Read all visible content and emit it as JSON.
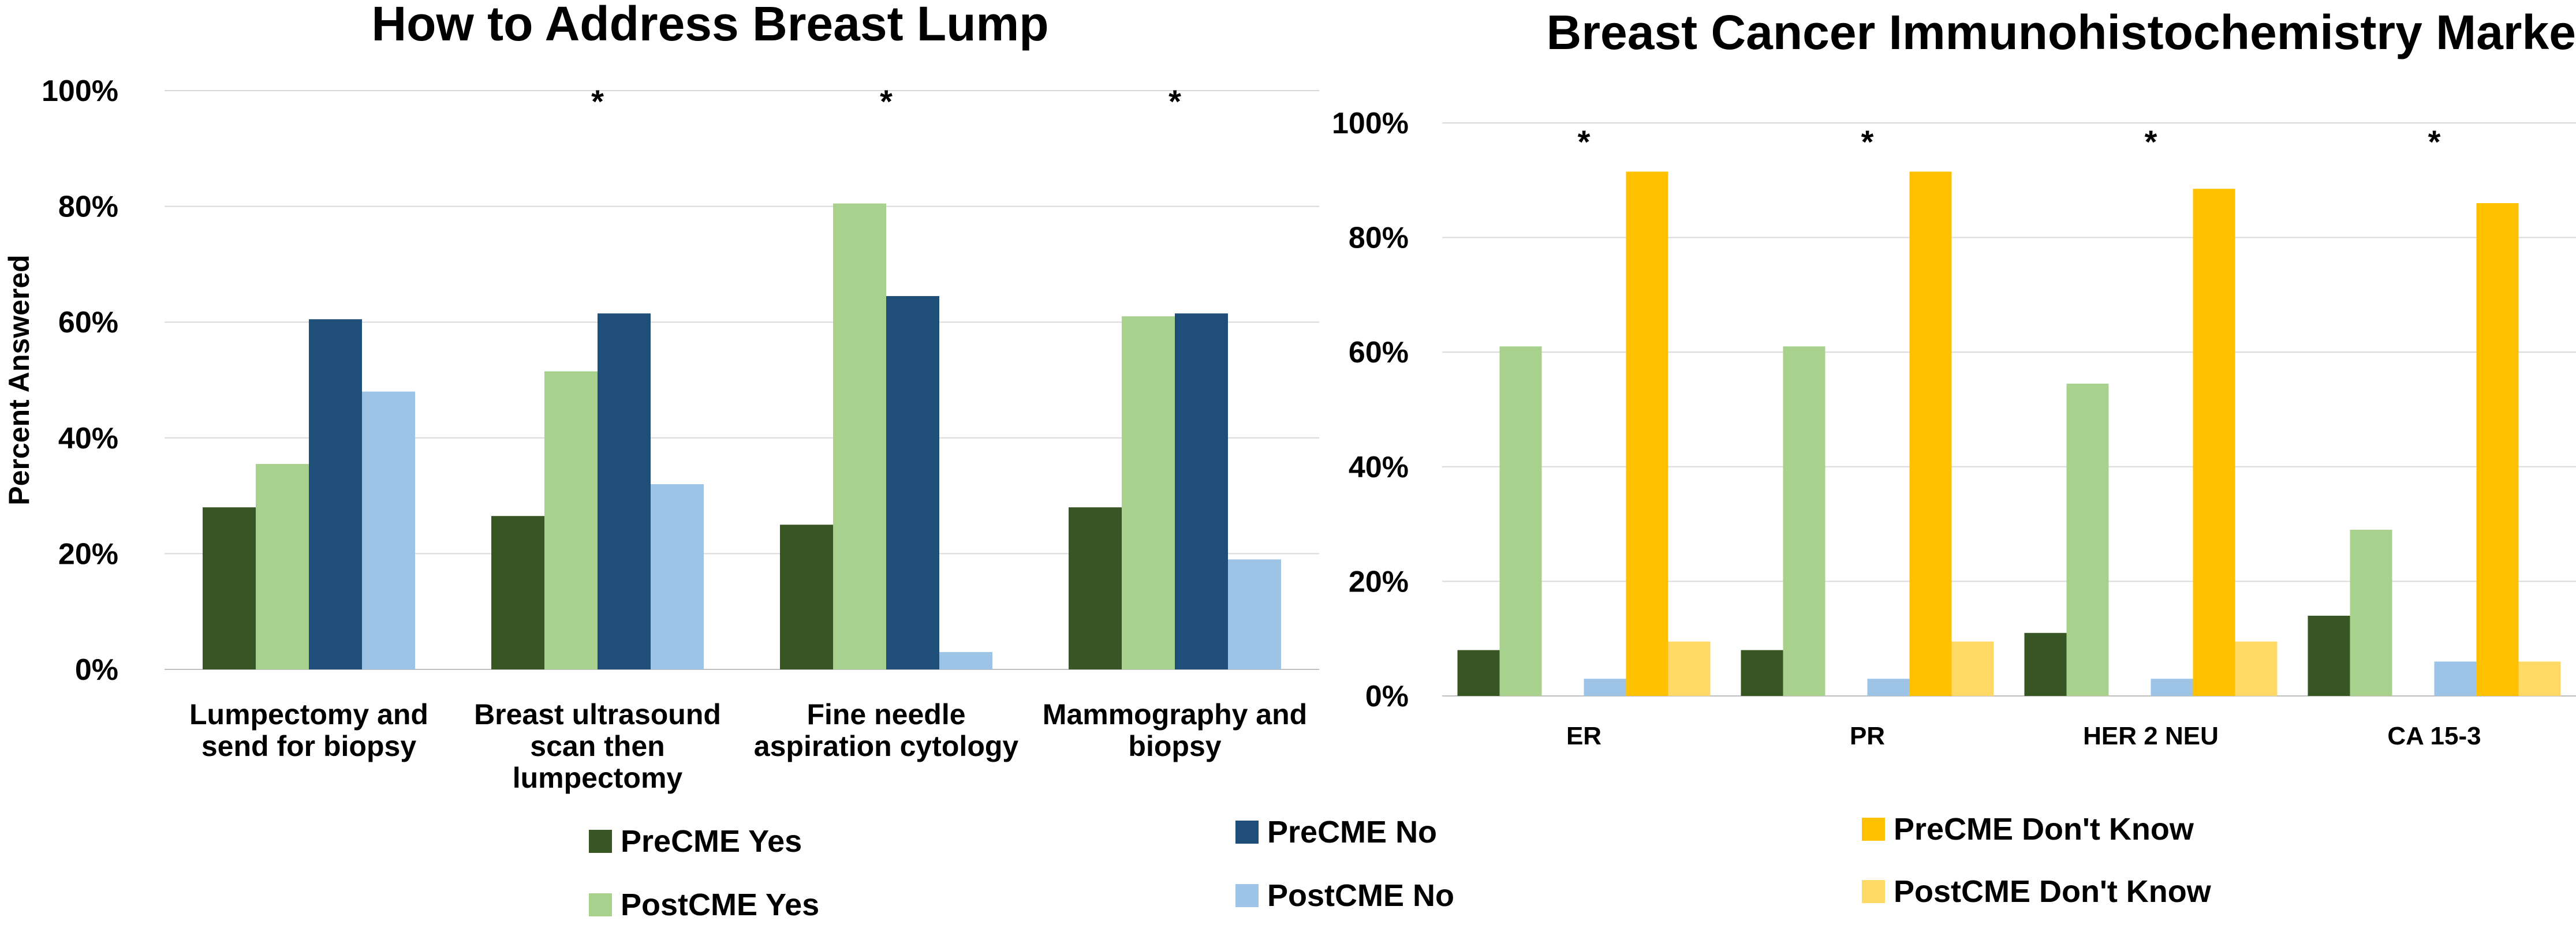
{
  "chart_data": [
    {
      "type": "bar",
      "title": "How to Address Breast Lump",
      "ylabel": "Percent Answered",
      "xlabel": "",
      "ylim": [
        0,
        100
      ],
      "yticks": [
        "0%",
        "20%",
        "40%",
        "60%",
        "80%",
        "100%"
      ],
      "categories": [
        [
          "Lumpectomy and",
          "send for biopsy"
        ],
        [
          "Breast ultrasound",
          "scan then",
          "lumpectomy"
        ],
        [
          "Fine needle",
          "aspiration cytology"
        ],
        [
          "Mammography and",
          "biopsy"
        ]
      ],
      "series": [
        {
          "name": "PreCME Yes",
          "color": "#375623",
          "values": [
            28,
            26.5,
            25,
            28
          ]
        },
        {
          "name": "PostCME Yes",
          "color": "#a9d18e",
          "values": [
            35.5,
            51.5,
            80.5,
            61
          ]
        },
        {
          "name": "PreCME No",
          "color": "#1f4e79",
          "values": [
            60.5,
            61.5,
            64.5,
            61.5
          ]
        },
        {
          "name": "PostCME No",
          "color": "#9dc3e6",
          "values": [
            48,
            32,
            3,
            19
          ]
        }
      ],
      "significance": [
        "",
        "*",
        "*",
        "*"
      ],
      "legend": "bottom"
    },
    {
      "type": "bar",
      "title": "Breast Cancer Immunohistochemistry Markers",
      "ylabel": "",
      "xlabel": "",
      "ylim": [
        0,
        100
      ],
      "yticks": [
        "0%",
        "20%",
        "40%",
        "60%",
        "80%",
        "100%"
      ],
      "categories": [
        [
          "ER"
        ],
        [
          "PR"
        ],
        [
          "HER 2 NEU"
        ],
        [
          "CA 15-3"
        ]
      ],
      "series": [
        {
          "name": "PreCME Yes",
          "color": "#375623",
          "values": [
            8,
            8,
            11,
            14
          ]
        },
        {
          "name": "PostCME Yes",
          "color": "#a9d18e",
          "values": [
            61,
            61,
            54.5,
            29
          ]
        },
        {
          "name": "PreCME No",
          "color": "#1f4e79",
          "values": [
            0,
            0,
            0,
            0
          ]
        },
        {
          "name": "PostCME No",
          "color": "#9dc3e6",
          "values": [
            3,
            3,
            3,
            6
          ]
        },
        {
          "name": "PreCME Don't Know",
          "color": "#ffc000",
          "values": [
            91.5,
            91.5,
            88.5,
            86
          ]
        },
        {
          "name": "PostCME Don't Know",
          "color": "#ffd966",
          "values": [
            9.5,
            9.5,
            9.5,
            6
          ]
        }
      ],
      "significance": [
        "*",
        "*",
        "*",
        "*"
      ],
      "legend": "bottom"
    }
  ],
  "legend": [
    {
      "label": "PreCME Yes",
      "color": "#375623"
    },
    {
      "label": "PostCME Yes",
      "color": "#a9d18e"
    },
    {
      "label": "PreCME No",
      "color": "#1f4e79"
    },
    {
      "label": "PostCME No",
      "color": "#9dc3e6"
    },
    {
      "label": "PreCME Don't Know",
      "color": "#ffc000"
    },
    {
      "label": "PostCME Don't Know",
      "color": "#ffd966"
    }
  ]
}
